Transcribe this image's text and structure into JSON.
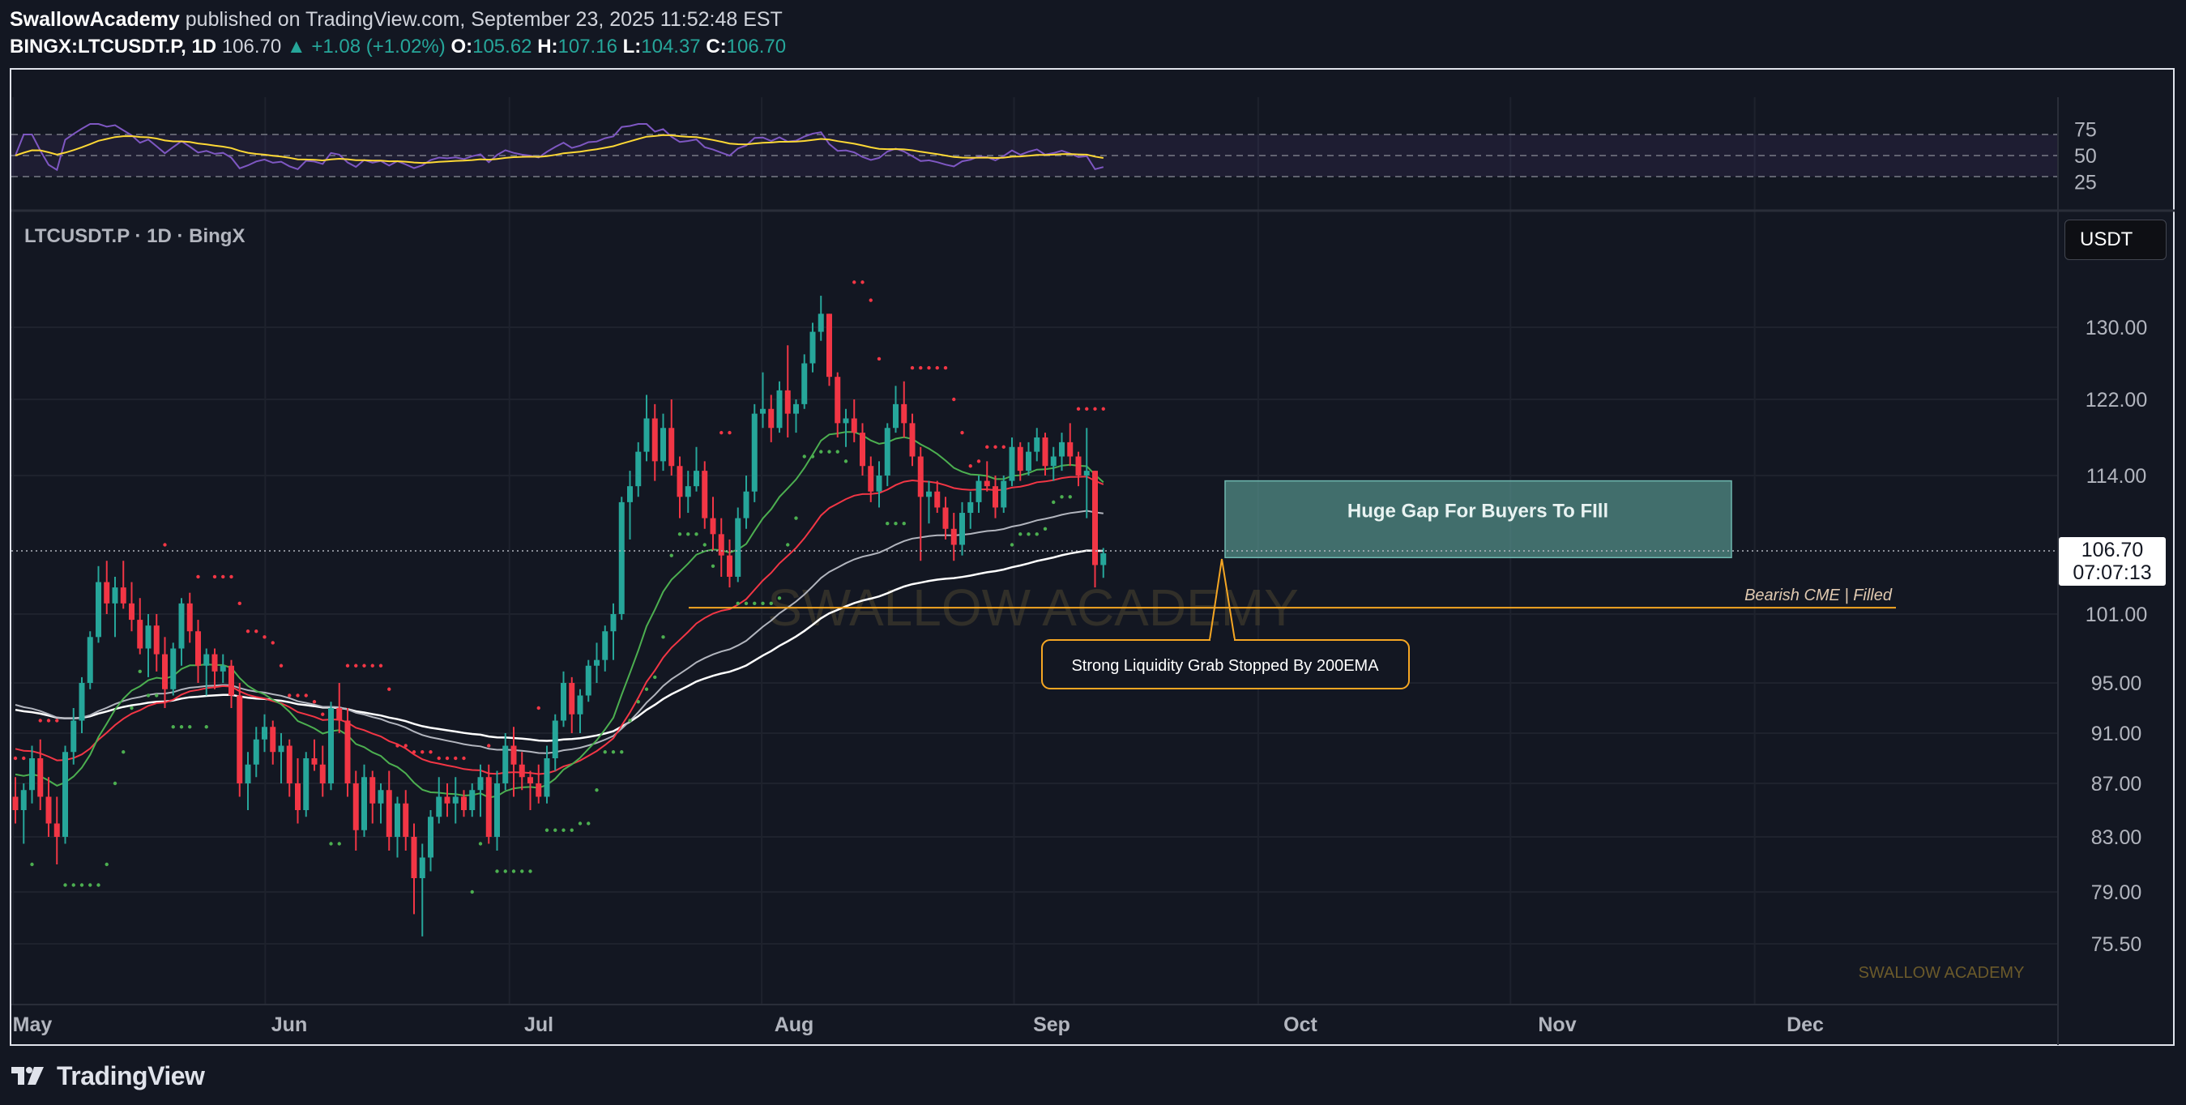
{
  "header": {
    "author": "SwallowAcademy",
    "published": "published on TradingView.com, September 23, 2025 11:52:48 EST",
    "symbol": "BINGX:LTCUSDT.P, 1D",
    "price": "106.70",
    "change": "▲ +1.08 (+1.02%)",
    "o_label": "O:",
    "o": "105.62",
    "h_label": "H:",
    "h": "107.16",
    "l_label": "L:",
    "l": "104.37",
    "c_label": "C:",
    "c": "106.70"
  },
  "chart_title": "LTCUSDT.P · 1D · BingX",
  "currency_button": "USDT",
  "last_price": {
    "value": "106.70",
    "countdown": "07:07:13"
  },
  "footer": {
    "brand": "TradingView"
  },
  "watermark": "SWALLOW ACADEMY",
  "watermark_small": "SWALLOW ACADEMY",
  "annotations": {
    "gap_box": "Huge Gap For Buyers To FIll",
    "cme_line": "Bearish CME | Filled",
    "callout": "Strong Liquidity Grab Stopped By 200EMA"
  },
  "colors": {
    "bull": "#26a69a",
    "bear": "#f23645",
    "ema200": "#ffffff",
    "ema100": "#b2b5be",
    "ema20": "#4caf50",
    "ema_red": "#f23645",
    "sar": "#4caf50",
    "rsi": "#7e57c2",
    "rsi_ma": "#fdd835",
    "cme": "#f5a623",
    "gap": "#5b9c95"
  },
  "chart_data": [
    {
      "type": "candlestick",
      "symbol": "LTCUSDT.P",
      "timeframe": "1D",
      "x_ticks": [
        "May",
        "Jun",
        "Jul",
        "Aug",
        "Sep",
        "Oct",
        "Nov",
        "Dec"
      ],
      "y_ticks": [
        "130.00",
        "122.00",
        "114.00",
        "101.00",
        "95.00",
        "91.00",
        "87.00",
        "83.00",
        "79.00",
        "75.50"
      ],
      "ylim": [
        73,
        138
      ],
      "start_date": "2025-05-01",
      "ohlc": [
        [
          86.0,
          87.5,
          84.0,
          85.0
        ],
        [
          85.0,
          87.0,
          82.5,
          86.5
        ],
        [
          86.5,
          90.0,
          85.5,
          89.0
        ],
        [
          89.0,
          90.5,
          85.0,
          86.0
        ],
        [
          86.0,
          87.5,
          83.0,
          84.0
        ],
        [
          84.0,
          86.0,
          81.0,
          83.0
        ],
        [
          83.0,
          90.0,
          82.5,
          89.5
        ],
        [
          89.5,
          93.0,
          88.5,
          92.0
        ],
        [
          92.0,
          95.5,
          91.0,
          95.0
        ],
        [
          95.0,
          99.5,
          94.5,
          99.0
        ],
        [
          99.0,
          105.5,
          98.5,
          104.0
        ],
        [
          104.0,
          106.0,
          101.0,
          102.0
        ],
        [
          102.0,
          104.5,
          99.0,
          103.5
        ],
        [
          103.5,
          106.0,
          101.5,
          102.0
        ],
        [
          102.0,
          104.0,
          99.5,
          100.5
        ],
        [
          100.5,
          102.5,
          97.5,
          98.0
        ],
        [
          98.0,
          101.0,
          95.5,
          100.0
        ],
        [
          100.0,
          101.0,
          96.0,
          97.5
        ],
        [
          97.5,
          99.0,
          93.0,
          94.5
        ],
        [
          94.5,
          98.5,
          94.0,
          98.0
        ],
        [
          98.0,
          102.5,
          96.5,
          102.0
        ],
        [
          102.0,
          103.0,
          98.5,
          99.5
        ],
        [
          99.5,
          100.5,
          95.0,
          96.5
        ],
        [
          96.5,
          98.0,
          94.0,
          97.5
        ],
        [
          97.5,
          98.0,
          94.5,
          96.0
        ],
        [
          96.0,
          97.5,
          95.0,
          96.5
        ],
        [
          96.5,
          97.0,
          93.0,
          94.0
        ],
        [
          94.0,
          95.0,
          86.0,
          87.0
        ],
        [
          87.0,
          89.5,
          85.0,
          88.5
        ],
        [
          88.5,
          91.5,
          87.5,
          90.5
        ],
        [
          90.5,
          92.5,
          89.5,
          91.5
        ],
        [
          91.5,
          92.0,
          88.5,
          89.5
        ],
        [
          89.5,
          91.0,
          87.0,
          90.0
        ],
        [
          90.0,
          90.5,
          86.0,
          87.0
        ],
        [
          87.0,
          89.0,
          84.0,
          85.0
        ],
        [
          85.0,
          89.5,
          84.5,
          89.0
        ],
        [
          89.0,
          90.5,
          88.0,
          88.5
        ],
        [
          88.5,
          90.0,
          86.0,
          87.0
        ],
        [
          87.0,
          93.5,
          86.5,
          93.0
        ],
        [
          93.0,
          95.0,
          91.0,
          92.0
        ],
        [
          92.0,
          93.0,
          86.0,
          87.0
        ],
        [
          87.0,
          88.0,
          82.0,
          83.5
        ],
        [
          83.5,
          88.5,
          83.0,
          87.5
        ],
        [
          87.5,
          88.0,
          84.0,
          85.5
        ],
        [
          85.5,
          87.0,
          84.0,
          86.5
        ],
        [
          86.5,
          88.0,
          82.0,
          83.0
        ],
        [
          83.0,
          86.0,
          81.5,
          85.5
        ],
        [
          85.5,
          86.5,
          82.0,
          83.0
        ],
        [
          83.0,
          84.0,
          77.5,
          80.0
        ],
        [
          80.0,
          82.5,
          76.0,
          81.5
        ],
        [
          81.5,
          85.0,
          80.5,
          84.5
        ],
        [
          84.5,
          87.5,
          84.0,
          86.0
        ],
        [
          86.0,
          87.0,
          84.5,
          85.5
        ],
        [
          85.5,
          87.5,
          84.0,
          86.0
        ],
        [
          86.0,
          86.5,
          84.5,
          85.0
        ],
        [
          85.0,
          87.0,
          84.5,
          86.5
        ],
        [
          86.5,
          88.5,
          84.5,
          87.5
        ],
        [
          87.5,
          88.5,
          82.5,
          83.0
        ],
        [
          83.0,
          88.0,
          82.0,
          87.0
        ],
        [
          87.0,
          91.0,
          86.5,
          90.0
        ],
        [
          90.0,
          91.5,
          86.0,
          88.5
        ],
        [
          88.5,
          89.5,
          86.5,
          87.5
        ],
        [
          87.5,
          88.0,
          85.0,
          87.0
        ],
        [
          87.0,
          88.5,
          85.5,
          86.0
        ],
        [
          86.0,
          90.0,
          85.5,
          89.0
        ],
        [
          89.0,
          92.5,
          88.0,
          92.0
        ],
        [
          92.0,
          96.0,
          91.5,
          95.0
        ],
        [
          95.0,
          95.5,
          91.0,
          92.5
        ],
        [
          92.5,
          94.5,
          91.0,
          94.0
        ],
        [
          94.0,
          97.0,
          93.5,
          96.5
        ],
        [
          96.5,
          98.5,
          95.0,
          97.0
        ],
        [
          97.0,
          100.0,
          96.0,
          99.5
        ],
        [
          99.5,
          102.0,
          97.0,
          101.0
        ],
        [
          101.0,
          112.0,
          100.5,
          111.5
        ],
        [
          111.5,
          114.5,
          108.0,
          113.0
        ],
        [
          113.0,
          117.5,
          112.0,
          116.5
        ],
        [
          116.5,
          122.5,
          115.5,
          120.0
        ],
        [
          120.0,
          121.5,
          113.5,
          115.5
        ],
        [
          115.5,
          120.5,
          114.5,
          119.0
        ],
        [
          119.0,
          122.0,
          114.0,
          115.0
        ],
        [
          115.0,
          116.0,
          110.0,
          112.0
        ],
        [
          112.0,
          114.5,
          110.5,
          113.0
        ],
        [
          113.0,
          117.0,
          112.5,
          114.5
        ],
        [
          114.5,
          115.5,
          109.0,
          110.0
        ],
        [
          110.0,
          112.0,
          107.0,
          108.5
        ],
        [
          108.5,
          110.0,
          104.5,
          106.5
        ],
        [
          106.5,
          108.0,
          103.5,
          104.5
        ],
        [
          104.5,
          111.0,
          104.0,
          110.0
        ],
        [
          110.0,
          114.0,
          109.0,
          112.5
        ],
        [
          112.5,
          121.5,
          111.5,
          120.5
        ],
        [
          120.5,
          125.0,
          119.0,
          121.0
        ],
        [
          121.0,
          122.5,
          117.5,
          119.0
        ],
        [
          119.0,
          124.0,
          118.5,
          123.0
        ],
        [
          123.0,
          128.0,
          118.0,
          120.5
        ],
        [
          120.5,
          122.0,
          118.5,
          121.5
        ],
        [
          121.5,
          127.0,
          121.0,
          126.0
        ],
        [
          126.0,
          130.5,
          125.0,
          129.5
        ],
        [
          129.5,
          133.5,
          128.5,
          131.5
        ],
        [
          131.5,
          131.5,
          123.5,
          124.5
        ],
        [
          124.5,
          125.0,
          118.0,
          119.5
        ],
        [
          119.5,
          121.0,
          117.0,
          120.0
        ],
        [
          120.0,
          122.0,
          117.5,
          118.5
        ],
        [
          118.5,
          119.5,
          114.0,
          115.0
        ],
        [
          115.0,
          116.0,
          111.5,
          112.5
        ],
        [
          112.5,
          115.5,
          111.0,
          114.0
        ],
        [
          114.0,
          119.5,
          113.0,
          119.0
        ],
        [
          119.0,
          123.5,
          118.5,
          121.5
        ],
        [
          121.5,
          124.0,
          118.0,
          119.5
        ],
        [
          119.5,
          120.5,
          115.0,
          116.0
        ],
        [
          116.0,
          117.0,
          106.0,
          112.0
        ],
        [
          112.0,
          113.5,
          109.5,
          112.5
        ],
        [
          112.5,
          113.5,
          110.5,
          111.0
        ],
        [
          111.0,
          112.0,
          108.0,
          109.0
        ],
        [
          109.0,
          110.5,
          106.0,
          107.5
        ],
        [
          107.5,
          111.5,
          106.5,
          110.5
        ],
        [
          110.5,
          112.5,
          109.0,
          111.5
        ],
        [
          111.5,
          114.0,
          110.5,
          113.5
        ],
        [
          113.5,
          115.5,
          112.5,
          113.0
        ],
        [
          113.0,
          114.0,
          110.0,
          111.0
        ],
        [
          111.0,
          114.0,
          110.5,
          113.5
        ],
        [
          113.5,
          118.0,
          113.0,
          117.0
        ],
        [
          117.0,
          117.5,
          113.5,
          114.5
        ],
        [
          114.5,
          117.5,
          114.0,
          116.5
        ],
        [
          116.5,
          119.0,
          115.5,
          118.0
        ],
        [
          118.0,
          118.5,
          114.0,
          115.0
        ],
        [
          115.0,
          117.0,
          113.5,
          116.0
        ],
        [
          116.0,
          118.5,
          114.5,
          117.5
        ],
        [
          117.5,
          119.5,
          115.0,
          116.0
        ],
        [
          116.0,
          116.5,
          113.0,
          114.0
        ],
        [
          114.0,
          119.0,
          110.0,
          114.5
        ],
        [
          114.5,
          114.5,
          103.5,
          105.6
        ],
        [
          105.6,
          107.2,
          104.4,
          106.7
        ]
      ],
      "levels": {
        "cme": 101.6,
        "gap_top": 113.5,
        "gap_bottom": 106.3
      },
      "indicators": [
        "EMA 20",
        "EMA 50",
        "EMA 100",
        "EMA 200",
        "Parabolic SAR"
      ]
    },
    {
      "type": "line",
      "name": "RSI",
      "y_ticks": [
        "75",
        "50",
        "25"
      ],
      "ylim": [
        25,
        75
      ]
    }
  ]
}
